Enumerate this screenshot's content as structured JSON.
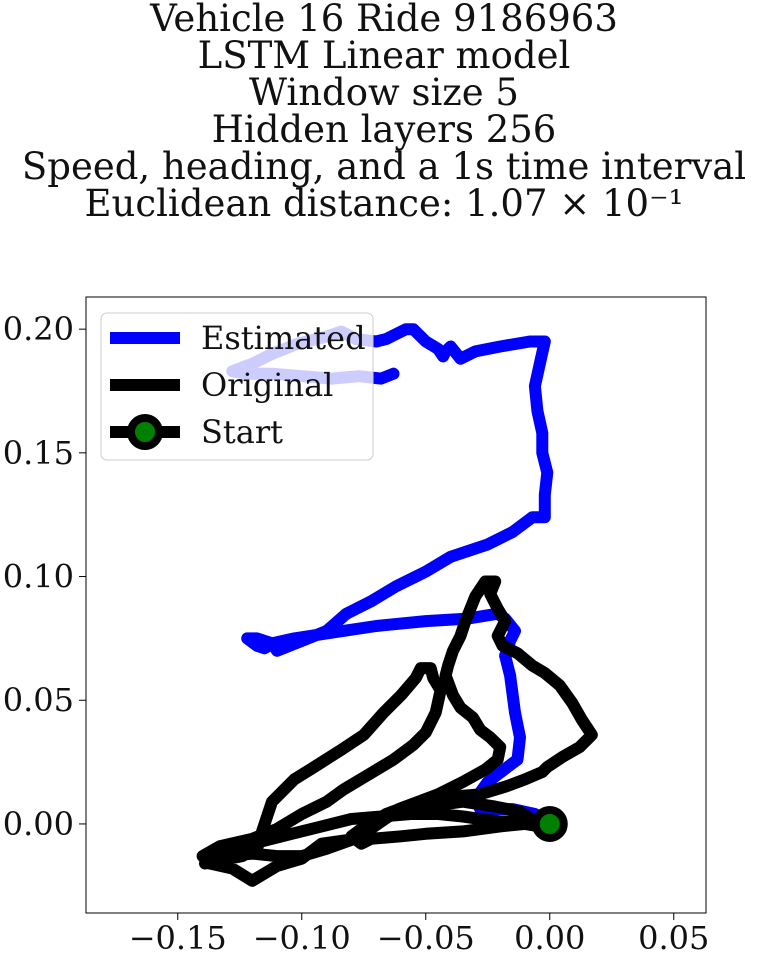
{
  "chart_data": {
    "type": "line",
    "title_lines": [
      "Vehicle 16 Ride 9186963",
      "LSTM Linear model",
      "Window size 5",
      "Hidden layers 256",
      "Speed, heading, and a 1s time interval",
      "Euclidean distance: 1.07 × 10⁻¹"
    ],
    "xlabel": "",
    "ylabel": "",
    "xlim": [
      -0.187,
      0.063
    ],
    "ylim": [
      -0.036,
      0.213
    ],
    "xticks": [
      -0.15,
      -0.1,
      -0.05,
      0.0,
      0.05
    ],
    "xtick_labels": [
      "−0.15",
      "−0.10",
      "−0.05",
      "0.00",
      "0.05"
    ],
    "yticks": [
      0.0,
      0.05,
      0.1,
      0.15,
      0.2
    ],
    "ytick_labels": [
      "0.00",
      "0.05",
      "0.10",
      "0.15",
      "0.20"
    ],
    "grid": false,
    "legend_placement": "top-left",
    "series": [
      {
        "name": "Estimated",
        "color": "#0000ff",
        "points": [
          [
            0.0,
            0.0
          ],
          [
            -0.006,
            0.004
          ],
          [
            -0.015,
            0.006
          ],
          [
            -0.028,
            0.006
          ],
          [
            -0.03,
            0.01
          ],
          [
            -0.025,
            0.017
          ],
          [
            -0.017,
            0.023
          ],
          [
            -0.013,
            0.026
          ],
          [
            -0.012,
            0.035
          ],
          [
            -0.014,
            0.045
          ],
          [
            -0.016,
            0.06
          ],
          [
            -0.018,
            0.068
          ],
          [
            -0.016,
            0.074
          ],
          [
            -0.014,
            0.078
          ],
          [
            -0.018,
            0.083
          ],
          [
            -0.021,
            0.085
          ],
          [
            -0.033,
            0.083
          ],
          [
            -0.05,
            0.082
          ],
          [
            -0.07,
            0.08
          ],
          [
            -0.09,
            0.077
          ],
          [
            -0.103,
            0.075
          ],
          [
            -0.112,
            0.073
          ],
          [
            -0.115,
            0.071
          ],
          [
            -0.118,
            0.072
          ],
          [
            -0.122,
            0.075
          ],
          [
            -0.118,
            0.075
          ],
          [
            -0.112,
            0.073
          ],
          [
            -0.11,
            0.07
          ],
          [
            -0.1,
            0.074
          ],
          [
            -0.09,
            0.078
          ],
          [
            -0.082,
            0.085
          ],
          [
            -0.072,
            0.09
          ],
          [
            -0.062,
            0.096
          ],
          [
            -0.05,
            0.102
          ],
          [
            -0.04,
            0.108
          ],
          [
            -0.025,
            0.113
          ],
          [
            -0.015,
            0.118
          ],
          [
            -0.007,
            0.124
          ],
          [
            -0.002,
            0.124
          ],
          [
            -0.002,
            0.133
          ],
          [
            -0.001,
            0.142
          ],
          [
            -0.003,
            0.15
          ],
          [
            -0.003,
            0.158
          ],
          [
            -0.005,
            0.167
          ],
          [
            -0.006,
            0.177
          ],
          [
            -0.004,
            0.186
          ],
          [
            -0.002,
            0.195
          ],
          [
            -0.008,
            0.195
          ],
          [
            -0.02,
            0.193
          ],
          [
            -0.03,
            0.191
          ],
          [
            -0.036,
            0.188
          ],
          [
            -0.04,
            0.193
          ],
          [
            -0.042,
            0.191
          ],
          [
            -0.043,
            0.189
          ],
          [
            -0.045,
            0.192
          ],
          [
            -0.05,
            0.195
          ],
          [
            -0.055,
            0.2
          ],
          [
            -0.058,
            0.2
          ],
          [
            -0.062,
            0.198
          ],
          [
            -0.066,
            0.196
          ],
          [
            -0.07,
            0.195
          ],
          [
            -0.078,
            0.196
          ],
          [
            -0.084,
            0.199
          ],
          [
            -0.09,
            0.197
          ],
          [
            -0.102,
            0.194
          ],
          [
            -0.112,
            0.19
          ],
          [
            -0.12,
            0.186
          ],
          [
            -0.128,
            0.183
          ],
          [
            -0.122,
            0.182
          ],
          [
            -0.112,
            0.182
          ],
          [
            -0.1,
            0.181
          ],
          [
            -0.088,
            0.18
          ],
          [
            -0.077,
            0.181
          ],
          [
            -0.068,
            0.18
          ],
          [
            -0.063,
            0.182
          ]
        ]
      },
      {
        "name": "Original",
        "color": "#000000",
        "points": [
          [
            0.0,
            0.0
          ],
          [
            -0.006,
            0.001
          ],
          [
            -0.012,
            0.005
          ],
          [
            -0.022,
            0.007
          ],
          [
            -0.035,
            0.009
          ],
          [
            -0.05,
            0.007
          ],
          [
            -0.065,
            0.003
          ],
          [
            -0.078,
            -0.006
          ],
          [
            -0.092,
            -0.008
          ],
          [
            -0.1,
            -0.014
          ],
          [
            -0.11,
            -0.017
          ],
          [
            -0.12,
            -0.023
          ],
          [
            -0.128,
            -0.018
          ],
          [
            -0.137,
            -0.016
          ],
          [
            -0.14,
            -0.013
          ],
          [
            -0.133,
            -0.009
          ],
          [
            -0.12,
            -0.006
          ],
          [
            -0.11,
            -0.002
          ],
          [
            -0.1,
            0.004
          ],
          [
            -0.09,
            0.009
          ],
          [
            -0.083,
            0.014
          ],
          [
            -0.073,
            0.02
          ],
          [
            -0.063,
            0.026
          ],
          [
            -0.055,
            0.032
          ],
          [
            -0.05,
            0.037
          ],
          [
            -0.046,
            0.045
          ],
          [
            -0.044,
            0.054
          ],
          [
            -0.047,
            0.059
          ],
          [
            -0.048,
            0.063
          ],
          [
            -0.052,
            0.063
          ],
          [
            -0.054,
            0.059
          ],
          [
            -0.06,
            0.052
          ],
          [
            -0.067,
            0.045
          ],
          [
            -0.075,
            0.036
          ],
          [
            -0.084,
            0.03
          ],
          [
            -0.095,
            0.023
          ],
          [
            -0.103,
            0.018
          ],
          [
            -0.112,
            0.009
          ],
          [
            -0.116,
            -0.003
          ],
          [
            -0.118,
            -0.01
          ],
          [
            -0.124,
            -0.013
          ],
          [
            -0.134,
            -0.015
          ],
          [
            -0.139,
            -0.016
          ],
          [
            -0.128,
            -0.01
          ],
          [
            -0.116,
            -0.007
          ],
          [
            -0.104,
            -0.004
          ],
          [
            -0.092,
            -0.001
          ],
          [
            -0.08,
            0.002
          ],
          [
            -0.068,
            0.003
          ],
          [
            -0.056,
            0.004
          ],
          [
            -0.045,
            0.004
          ],
          [
            -0.035,
            0.003
          ],
          [
            -0.028,
            0.002
          ],
          [
            -0.02,
            0.001
          ],
          [
            -0.012,
            0.001
          ],
          [
            -0.004,
            0.001
          ],
          [
            -0.004,
            -0.001
          ],
          [
            -0.01,
            0.0
          ],
          [
            -0.02,
            -0.001
          ],
          [
            -0.035,
            -0.003
          ],
          [
            -0.05,
            -0.004
          ],
          [
            -0.06,
            -0.005
          ],
          [
            -0.072,
            -0.006
          ],
          [
            -0.076,
            -0.008
          ],
          [
            -0.08,
            -0.005
          ],
          [
            -0.076,
            -0.002
          ],
          [
            -0.066,
            0.004
          ],
          [
            -0.05,
            0.01
          ],
          [
            -0.04,
            0.011
          ],
          [
            -0.028,
            0.012
          ],
          [
            -0.018,
            0.015
          ],
          [
            -0.01,
            0.018
          ],
          [
            -0.003,
            0.021
          ],
          [
            -0.001,
            0.023
          ],
          [
            0.005,
            0.027
          ],
          [
            0.012,
            0.031
          ],
          [
            0.017,
            0.036
          ],
          [
            0.015,
            0.039
          ],
          [
            0.013,
            0.042
          ],
          [
            0.009,
            0.049
          ],
          [
            0.004,
            0.056
          ],
          [
            -0.002,
            0.061
          ],
          [
            -0.007,
            0.064
          ],
          [
            -0.013,
            0.069
          ],
          [
            -0.019,
            0.072
          ],
          [
            -0.021,
            0.076
          ],
          [
            -0.02,
            0.078
          ],
          [
            -0.018,
            0.082
          ],
          [
            -0.021,
            0.087
          ],
          [
            -0.024,
            0.093
          ],
          [
            -0.022,
            0.098
          ],
          [
            -0.026,
            0.098
          ],
          [
            -0.03,
            0.092
          ],
          [
            -0.032,
            0.087
          ],
          [
            -0.034,
            0.082
          ],
          [
            -0.036,
            0.076
          ],
          [
            -0.039,
            0.07
          ],
          [
            -0.041,
            0.064
          ],
          [
            -0.042,
            0.06
          ],
          [
            -0.039,
            0.052
          ],
          [
            -0.036,
            0.047
          ],
          [
            -0.031,
            0.043
          ],
          [
            -0.028,
            0.038
          ],
          [
            -0.024,
            0.035
          ],
          [
            -0.02,
            0.031
          ],
          [
            -0.021,
            0.026
          ],
          [
            -0.026,
            0.022
          ],
          [
            -0.035,
            0.017
          ],
          [
            -0.045,
            0.012
          ],
          [
            -0.053,
            0.009
          ],
          [
            -0.061,
            0.006
          ],
          [
            -0.066,
            0.003
          ],
          [
            -0.076,
            -0.005
          ],
          [
            -0.09,
            -0.01
          ],
          [
            -0.1,
            -0.013
          ],
          [
            -0.11,
            -0.013
          ],
          [
            -0.12,
            -0.012
          ],
          [
            -0.13,
            -0.013
          ]
        ]
      },
      {
        "name": "Start",
        "color": "#000000",
        "marker_face": "#008000",
        "points": [
          [
            0.0,
            0.0
          ]
        ]
      }
    ]
  }
}
